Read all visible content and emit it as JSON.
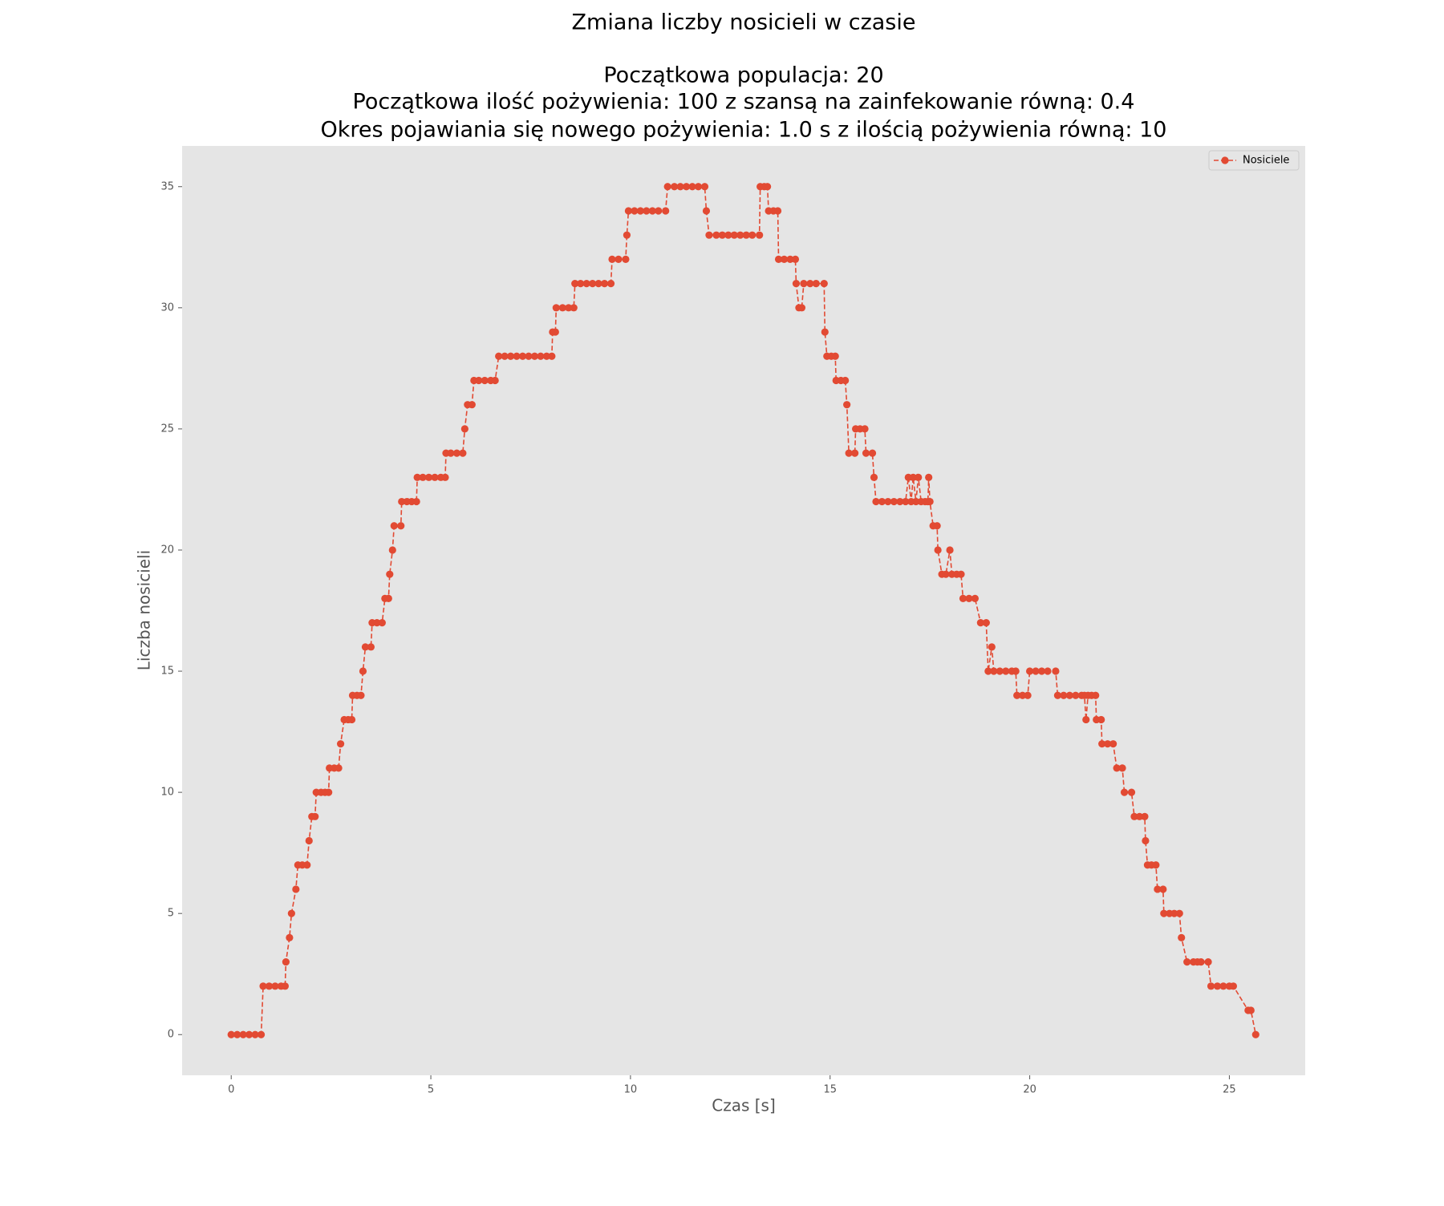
{
  "chart_data": {
    "type": "line",
    "title": "Zmiana liczby nosicieli w czasie",
    "subtitle": [
      "Początkowa populacja: 20",
      "Początkowa ilość pożywienia: 100 z szansą na zainfekowanie równą: 0.4",
      "Okres pojawiania się nowego pożywienia: 1.0 s z ilością pożywienia równą: 10"
    ],
    "x_label": "Czas [s]",
    "y_label": "Liczba nosicieli",
    "xlim": [
      -1.23,
      26.9
    ],
    "ylim": [
      -1.68,
      36.68
    ],
    "xticks": [
      0,
      5,
      10,
      15,
      20,
      25
    ],
    "yticks": [
      0,
      5,
      10,
      15,
      20,
      25,
      30,
      35
    ],
    "grid": false,
    "legend": "upper right",
    "x": [
      0,
      0.15,
      0.3,
      0.45,
      0.6,
      0.75,
      0.8,
      0.95,
      1.1,
      1.25,
      1.35,
      1.37,
      1.46,
      1.51,
      1.62,
      1.67,
      1.78,
      1.9,
      1.95,
      2.02,
      2.1,
      2.13,
      2.25,
      2.35,
      2.44,
      2.46,
      2.58,
      2.69,
      2.74,
      2.83,
      2.93,
      3.02,
      3.04,
      3.15,
      3.25,
      3.3,
      3.36,
      3.5,
      3.53,
      3.65,
      3.78,
      3.85,
      3.94,
      3.97,
      4.04,
      4.08,
      4.25,
      4.27,
      4.4,
      4.52,
      4.64,
      4.66,
      4.8,
      4.95,
      5.1,
      5.25,
      5.36,
      5.38,
      5.5,
      5.65,
      5.8,
      5.85,
      5.92,
      6.03,
      6.08,
      6.2,
      6.35,
      6.5,
      6.61,
      6.7,
      6.85,
      7.0,
      7.15,
      7.3,
      7.45,
      7.6,
      7.75,
      7.9,
      8.03,
      8.05,
      8.12,
      8.14,
      8.3,
      8.45,
      8.58,
      8.61,
      8.75,
      8.9,
      9.05,
      9.2,
      9.35,
      9.51,
      9.54,
      9.7,
      9.88,
      9.91,
      9.95,
      10.1,
      10.25,
      10.4,
      10.55,
      10.7,
      10.88,
      10.93,
      11.1,
      11.25,
      11.4,
      11.55,
      11.7,
      11.86,
      11.9,
      11.97,
      12.15,
      12.3,
      12.45,
      12.6,
      12.75,
      12.9,
      13.05,
      13.23,
      13.25,
      13.35,
      13.43,
      13.46,
      13.58,
      13.69,
      13.71,
      13.85,
      14.0,
      14.13,
      14.15,
      14.22,
      14.29,
      14.34,
      14.5,
      14.65,
      14.85,
      14.87,
      14.92,
      15.03,
      15.13,
      15.15,
      15.27,
      15.38,
      15.42,
      15.47,
      15.62,
      15.64,
      15.75,
      15.87,
      15.9,
      16.06,
      16.1,
      16.15,
      16.3,
      16.45,
      16.6,
      16.75,
      16.89,
      16.96,
      17.03,
      17.08,
      17.15,
      17.21,
      17.28,
      17.38,
      17.45,
      17.47,
      17.5,
      17.58,
      17.68,
      17.7,
      17.8,
      17.9,
      18.0,
      18.05,
      18.17,
      18.28,
      18.33,
      18.48,
      18.63,
      18.77,
      18.91,
      18.96,
      19.05,
      19.1,
      19.25,
      19.4,
      19.55,
      19.65,
      19.68,
      19.82,
      19.95,
      20.0,
      20.15,
      20.3,
      20.45,
      20.65,
      20.7,
      20.85,
      21.0,
      21.15,
      21.3,
      21.37,
      21.41,
      21.46,
      21.55,
      21.65,
      21.67,
      21.79,
      21.81,
      21.95,
      22.09,
      22.18,
      22.32,
      22.37,
      22.55,
      22.62,
      22.75,
      22.88,
      22.9,
      22.95,
      23.05,
      23.16,
      23.2,
      23.34,
      23.36,
      23.5,
      23.62,
      23.75,
      23.8,
      23.94,
      24.1,
      24.2,
      24.29,
      24.47,
      24.54,
      24.7,
      24.85,
      25.0,
      25.1,
      25.47,
      25.54,
      25.66
    ],
    "series": [
      {
        "name": "Nosiciele",
        "color": "#E24A33",
        "values": [
          0,
          0,
          0,
          0,
          0,
          0,
          2,
          2,
          2,
          2,
          2,
          3,
          4,
          5,
          6,
          7,
          7,
          7,
          8,
          9,
          9,
          10,
          10,
          10,
          10,
          11,
          11,
          11,
          12,
          13,
          13,
          13,
          14,
          14,
          14,
          15,
          16,
          16,
          17,
          17,
          17,
          18,
          18,
          19,
          20,
          21,
          21,
          22,
          22,
          22,
          22,
          23,
          23,
          23,
          23,
          23,
          23,
          24,
          24,
          24,
          24,
          25,
          26,
          26,
          27,
          27,
          27,
          27,
          27,
          28,
          28,
          28,
          28,
          28,
          28,
          28,
          28,
          28,
          28,
          29,
          29,
          30,
          30,
          30,
          30,
          31,
          31,
          31,
          31,
          31,
          31,
          31,
          32,
          32,
          32,
          33,
          34,
          34,
          34,
          34,
          34,
          34,
          34,
          35,
          35,
          35,
          35,
          35,
          35,
          35,
          34,
          33,
          33,
          33,
          33,
          33,
          33,
          33,
          33,
          33,
          35,
          35,
          35,
          34,
          34,
          34,
          32,
          32,
          32,
          32,
          31,
          30,
          30,
          31,
          31,
          31,
          31,
          29,
          28,
          28,
          28,
          27,
          27,
          27,
          26,
          24,
          24,
          25,
          25,
          25,
          24,
          24,
          23,
          22,
          22,
          22,
          22,
          22,
          22,
          23,
          22,
          23,
          22,
          23,
          22,
          22,
          22,
          23,
          22,
          21,
          21,
          20,
          19,
          19,
          20,
          19,
          19,
          19,
          18,
          18,
          18,
          17,
          17,
          15,
          16,
          15,
          15,
          15,
          15,
          15,
          14,
          14,
          14,
          15,
          15,
          15,
          15,
          15,
          14,
          14,
          14,
          14,
          14,
          14,
          13,
          14,
          14,
          14,
          13,
          13,
          12,
          12,
          12,
          11,
          11,
          10,
          10,
          9,
          9,
          9,
          8,
          7,
          7,
          7,
          6,
          6,
          5,
          5,
          5,
          5,
          4,
          3,
          3,
          3,
          3,
          3,
          2,
          2,
          2,
          2,
          2,
          1,
          1,
          0
        ]
      }
    ]
  }
}
